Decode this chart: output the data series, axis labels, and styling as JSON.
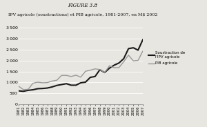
{
  "title_line1": "FIGURE 3.8",
  "title_line2": "IPV agricole (soustractions) et PIB agricole, 1981-2007, en M$ 2002",
  "years": [
    1981,
    1982,
    1983,
    1984,
    1985,
    1986,
    1987,
    1988,
    1989,
    1990,
    1991,
    1992,
    1993,
    1994,
    1995,
    1996,
    1997,
    1998,
    1999,
    2000,
    2001,
    2002,
    2003,
    2004,
    2005,
    2006,
    2007
  ],
  "soustraction_ipv": [
    610,
    590,
    635,
    660,
    710,
    720,
    740,
    790,
    860,
    900,
    940,
    870,
    870,
    980,
    1010,
    1230,
    1270,
    1580,
    1450,
    1650,
    1790,
    1890,
    2090,
    2550,
    2590,
    2480,
    2960
  ],
  "pib_agricole": [
    820,
    670,
    680,
    960,
    1010,
    980,
    990,
    1060,
    1100,
    1320,
    1320,
    1270,
    1330,
    1240,
    1510,
    1560,
    1620,
    1590,
    1450,
    1760,
    1670,
    1680,
    1950,
    2250,
    1990,
    2010,
    2440
  ],
  "legend_label1": "Soustraction de\nl'IPV agricole",
  "legend_label2": "PIB agricole",
  "ylim": [
    0,
    3500
  ],
  "yticks": [
    0,
    500,
    1000,
    1500,
    2000,
    2500,
    3000,
    3500
  ],
  "color_soustraction": "#1a1a1a",
  "color_pib": "#999999",
  "bg_color": "#e8e6e0",
  "plot_bg_color": "#e8e6e0",
  "linewidth_soustraction": 1.5,
  "linewidth_pib": 1.0,
  "title1_fontsize": 5.0,
  "title2_fontsize": 4.5
}
